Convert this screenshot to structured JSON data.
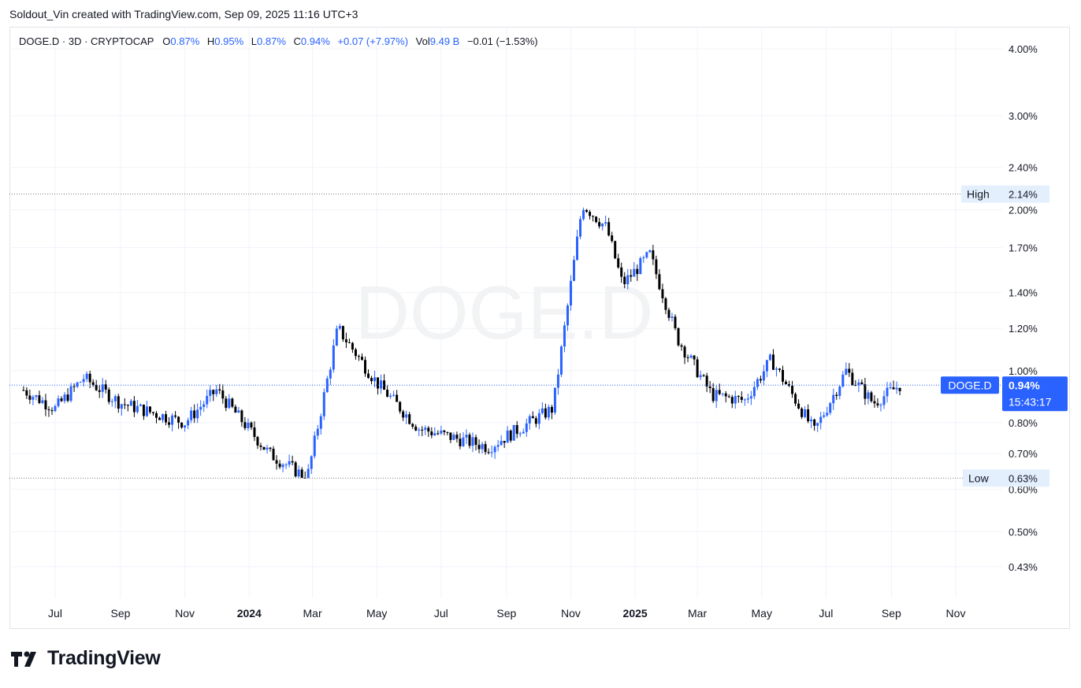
{
  "caption": "Soldout_Vin created with TradingView.com, Sep 09, 2025 11:16 UTC+3",
  "legend": {
    "symbol": "DOGE.D · 3D · CRYPTOCAP",
    "open_label": "O",
    "open": "0.87%",
    "high_label": "H",
    "high": "0.95%",
    "low_label": "L",
    "low": "0.87%",
    "close_label": "C",
    "close": "0.94%",
    "change": "+0.07 (+7.97%)",
    "vol_label": "Vol",
    "vol": "9.49 B",
    "vol_change": "−0.01 (−1.53%)"
  },
  "watermark": "DOGE.D",
  "brand": "TradingView",
  "icons": {
    "logo": "tradingview-logo-icon"
  },
  "colors": {
    "accent": "#2962ff",
    "up": "#2962ff",
    "down": "#000000"
  },
  "chart_data": {
    "type": "candlestick",
    "y_scale": "log",
    "ylim": [
      0.38,
      4.3
    ],
    "y_ticks": [
      "4.00%",
      "3.00%",
      "2.40%",
      "2.00%",
      "1.70%",
      "1.40%",
      "1.20%",
      "1.00%",
      "0.80%",
      "0.70%",
      "0.60%",
      "0.50%",
      "0.43%"
    ],
    "x_ticks": [
      "Jul",
      "Sep",
      "Nov",
      "2024",
      "Mar",
      "May",
      "Jul",
      "Sep",
      "Nov",
      "2025",
      "Mar",
      "May",
      "Jul",
      "Sep",
      "Nov"
    ],
    "x_ticks_bold": [
      "2024",
      "2025"
    ],
    "markers": {
      "high_label": "High",
      "high_value": "2.14%",
      "low_label": "Low",
      "low_value": "0.63%",
      "last_symbol": "DOGE.D",
      "last_value": "0.94%",
      "countdown": "15:43:17"
    },
    "series_approx": [
      {
        "date": "2023-06-01",
        "close": 0.92
      },
      {
        "date": "2023-07-01",
        "close": 0.85
      },
      {
        "date": "2023-07-28",
        "close": 0.97
      },
      {
        "date": "2023-09-01",
        "close": 0.87
      },
      {
        "date": "2023-11-01",
        "close": 0.8
      },
      {
        "date": "2023-12-01",
        "close": 0.92
      },
      {
        "date": "2024-01-20",
        "close": 0.7
      },
      {
        "date": "2024-02-25",
        "close": 0.63
      },
      {
        "date": "2024-03-25",
        "close": 1.2
      },
      {
        "date": "2024-05-01",
        "close": 0.95
      },
      {
        "date": "2024-06-10",
        "close": 0.78
      },
      {
        "date": "2024-08-15",
        "close": 0.72
      },
      {
        "date": "2024-10-15",
        "close": 0.85
      },
      {
        "date": "2024-11-12",
        "close": 2.05
      },
      {
        "date": "2024-12-05",
        "close": 1.85
      },
      {
        "date": "2024-12-20",
        "close": 1.45
      },
      {
        "date": "2025-01-15",
        "close": 1.65
      },
      {
        "date": "2025-02-10",
        "close": 1.15
      },
      {
        "date": "2025-03-15",
        "close": 0.9
      },
      {
        "date": "2025-04-15",
        "close": 0.88
      },
      {
        "date": "2025-05-10",
        "close": 1.05
      },
      {
        "date": "2025-06-20",
        "close": 0.77
      },
      {
        "date": "2025-07-20",
        "close": 1.0
      },
      {
        "date": "2025-08-15",
        "close": 0.87
      },
      {
        "date": "2025-09-09",
        "close": 0.94
      }
    ]
  }
}
